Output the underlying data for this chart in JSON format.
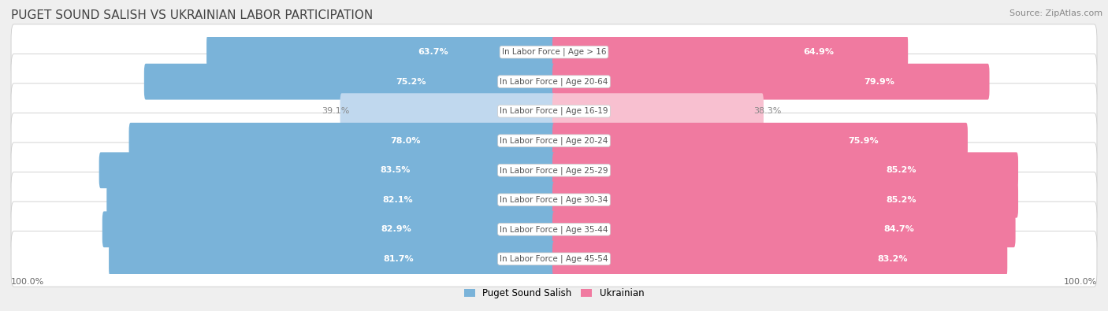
{
  "title": "PUGET SOUND SALISH VS UKRAINIAN LABOR PARTICIPATION",
  "source": "Source: ZipAtlas.com",
  "categories": [
    "In Labor Force | Age > 16",
    "In Labor Force | Age 20-64",
    "In Labor Force | Age 16-19",
    "In Labor Force | Age 20-24",
    "In Labor Force | Age 25-29",
    "In Labor Force | Age 30-34",
    "In Labor Force | Age 35-44",
    "In Labor Force | Age 45-54"
  ],
  "salish_values": [
    63.7,
    75.2,
    39.1,
    78.0,
    83.5,
    82.1,
    82.9,
    81.7
  ],
  "ukrainian_values": [
    64.9,
    79.9,
    38.3,
    75.9,
    85.2,
    85.2,
    84.7,
    83.2
  ],
  "salish_color": "#7ab3d9",
  "salish_color_light": "#c0d8ee",
  "ukrainian_color": "#f07aa0",
  "ukrainian_color_light": "#f8c0d0",
  "background_color": "#efefef",
  "row_bg_color": "#ffffff",
  "max_value": 100.0,
  "legend_label_salish": "Puget Sound Salish",
  "legend_label_ukrainian": "Ukrainian",
  "title_fontsize": 11,
  "source_fontsize": 8,
  "label_fontsize": 8,
  "category_fontsize": 7.5,
  "axis_label_fontsize": 8
}
